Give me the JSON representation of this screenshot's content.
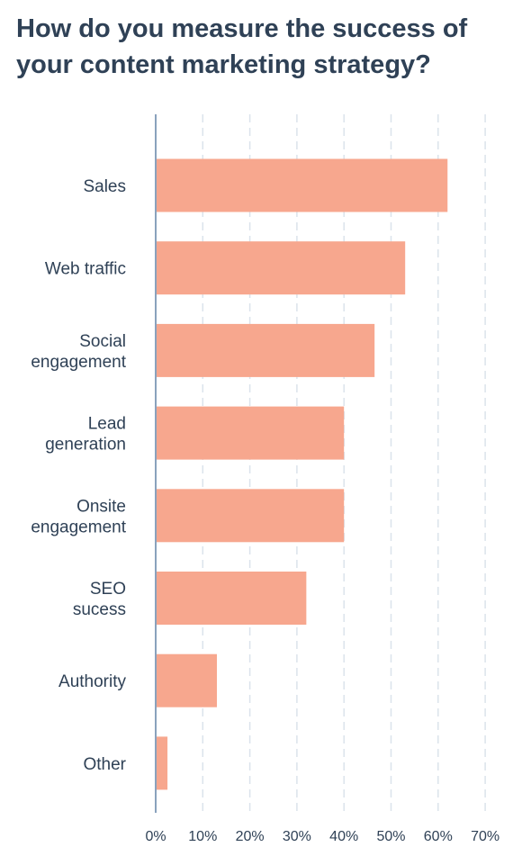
{
  "chart_data": {
    "type": "bar",
    "orientation": "horizontal",
    "title": [
      "How do you measure the success of",
      "your content marketing strategy?"
    ],
    "xlabel": "",
    "ylabel": "",
    "categories": [
      [
        "Sales"
      ],
      [
        "Web traffic"
      ],
      [
        "Social",
        "engagement"
      ],
      [
        "Lead",
        "generation"
      ],
      [
        "Onsite",
        "engagement"
      ],
      [
        "SEO",
        "sucess"
      ],
      [
        "Authority"
      ],
      [
        "Other"
      ]
    ],
    "values": [
      62,
      53,
      46.5,
      40,
      40,
      32,
      13,
      2.5
    ],
    "xlim": [
      0,
      70
    ],
    "ticks": [
      0,
      10,
      20,
      30,
      40,
      50,
      60,
      70
    ],
    "tick_labels": [
      "0%",
      "10%",
      "20%",
      "30%",
      "40%",
      "50%",
      "60%",
      "70%"
    ],
    "grid": "vertical dashed",
    "legend": "none",
    "colors": {
      "bar": "#f7a78e",
      "axis": "#8aa2bd",
      "grid": "#dbe3ec",
      "text": "#2f4156"
    }
  }
}
